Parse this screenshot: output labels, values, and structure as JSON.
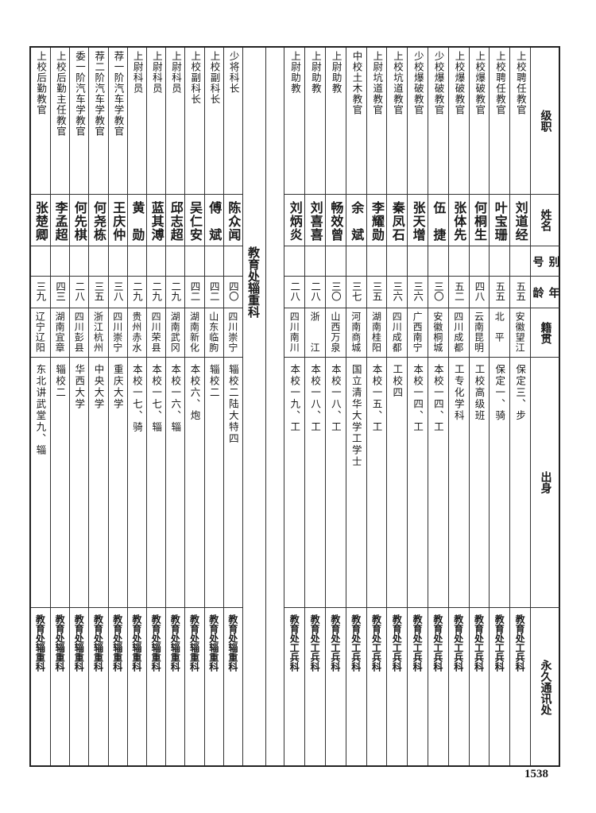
{
  "header": {
    "rank": "级职",
    "name": "姓名",
    "alias": "别号",
    "age": "年龄",
    "origin": "籍贯",
    "education": "出身",
    "address": "永久通讯处"
  },
  "section_title": "教育处辎重科",
  "right_group": [
    {
      "rank": "上校聘任教官",
      "name": "刘道经",
      "alias": "",
      "age": "五五",
      "origin": "安徽望江",
      "education": "保定三、步",
      "address": "教育处工兵科"
    },
    {
      "rank": "上校聘任教官",
      "name": "叶宝珊",
      "alias": "",
      "age": "五五",
      "origin": "北　平",
      "education": "保定一、骑",
      "address": "教育处工兵科"
    },
    {
      "rank": "上校爆破教官",
      "name": "何桐生",
      "alias": "",
      "age": "四八",
      "origin": "云南昆明",
      "education": "工校高级班",
      "address": "教育处工兵科"
    },
    {
      "rank": "上校爆破教官",
      "name": "张体先",
      "alias": "",
      "age": "五二",
      "origin": "四川成都",
      "education": "工专化学科",
      "address": "教育处工兵科"
    },
    {
      "rank": "少校爆破教官",
      "name": "伍　捷",
      "alias": "",
      "age": "三〇",
      "origin": "安徽桐城",
      "education": "本校一四、工",
      "address": "教育处工兵科"
    },
    {
      "rank": "少校爆破教官",
      "name": "张天增",
      "alias": "",
      "age": "三六",
      "origin": "广西南宁",
      "education": "本校一四、工",
      "address": "教育处工兵科"
    },
    {
      "rank": "上校坑道教官",
      "name": "秦凤石",
      "alias": "",
      "age": "三六",
      "origin": "四川成都",
      "education": "工校四",
      "address": "教育处工兵科"
    },
    {
      "rank": "上尉坑道教官",
      "name": "李耀勋",
      "alias": "",
      "age": "三五",
      "origin": "湖南桂阳",
      "education": "本校一五、工",
      "address": "教育处工兵科"
    },
    {
      "rank": "中校土木教官",
      "name": "余　斌",
      "alias": "",
      "age": "三七",
      "origin": "河南商城",
      "education": "国立清华大学工学士",
      "address": "教育处工兵科"
    },
    {
      "rank": "上尉助教",
      "name": "畅效曾",
      "alias": "",
      "age": "三〇",
      "origin": "山西万泉",
      "education": "本校一八、工",
      "address": "教育处工兵科"
    },
    {
      "rank": "上尉助教",
      "name": "刘喜喜",
      "alias": "",
      "age": "二八",
      "origin": "浙　　江",
      "education": "本校一八、工",
      "address": "教育处工兵科"
    },
    {
      "rank": "上尉助教",
      "name": "刘炳炎",
      "alias": "",
      "age": "二八",
      "origin": "四川南川",
      "education": "本校一九、工",
      "address": "教育处工兵科"
    }
  ],
  "left_group": [
    {
      "rank": "少将科长",
      "name": "陈众闻",
      "alias": "",
      "age": "四〇",
      "origin": "四川崇宁",
      "education": "辎校二陆大特四",
      "address": "教育处辎重科"
    },
    {
      "rank": "上校副科长",
      "name": "傅　斌",
      "alias": "",
      "age": "四二",
      "origin": "山东临朐",
      "education": "辎校二",
      "address": "教育处辎重科"
    },
    {
      "rank": "上校副科长",
      "name": "吴仁安",
      "alias": "",
      "age": "四二",
      "origin": "湖南新化",
      "education": "本校六、炮",
      "address": "教育处辎重科"
    },
    {
      "rank": "上尉科员",
      "name": "邱志超",
      "alias": "",
      "age": "二九",
      "origin": "湖南武冈",
      "education": "本校一六、辎",
      "address": "教育处辎重科"
    },
    {
      "rank": "上尉科员",
      "name": "蓝其溥",
      "alias": "",
      "age": "二九",
      "origin": "四川荣县",
      "education": "本校一七、辎",
      "address": "教育处辎重科"
    },
    {
      "rank": "上尉科员",
      "name": "黄　勋",
      "alias": "",
      "age": "二九",
      "origin": "贵州赤水",
      "education": "本校一七、骑",
      "address": "教育处辎重科"
    },
    {
      "rank": "荐一阶汽车学教官",
      "name": "王庆仲",
      "alias": "",
      "age": "三八",
      "origin": "四川崇宁",
      "education": "重庆大学",
      "address": "教育处辎重科"
    },
    {
      "rank": "荐二阶汽车学教官",
      "name": "何尧栋",
      "alias": "",
      "age": "三五",
      "origin": "浙江杭州",
      "education": "中央大学",
      "address": "教育处辎重科"
    },
    {
      "rank": "委一阶汽车学教官",
      "name": "何先棋",
      "alias": "",
      "age": "二八",
      "origin": "四川彭县",
      "education": "华西大学",
      "address": "教育处辎重科"
    },
    {
      "rank": "上校后勤主任教官",
      "name": "李孟超",
      "alias": "",
      "age": "四三",
      "origin": "湖南宜章",
      "education": "辎校二",
      "address": "教育处辎重科"
    },
    {
      "rank": "上校后勤教官",
      "name": "张楚卿",
      "alias": "",
      "age": "三九",
      "origin": "辽宁辽阳",
      "education": "东北讲武堂九、辎",
      "address": "教育处辎重科"
    }
  ],
  "page_number": "1538"
}
